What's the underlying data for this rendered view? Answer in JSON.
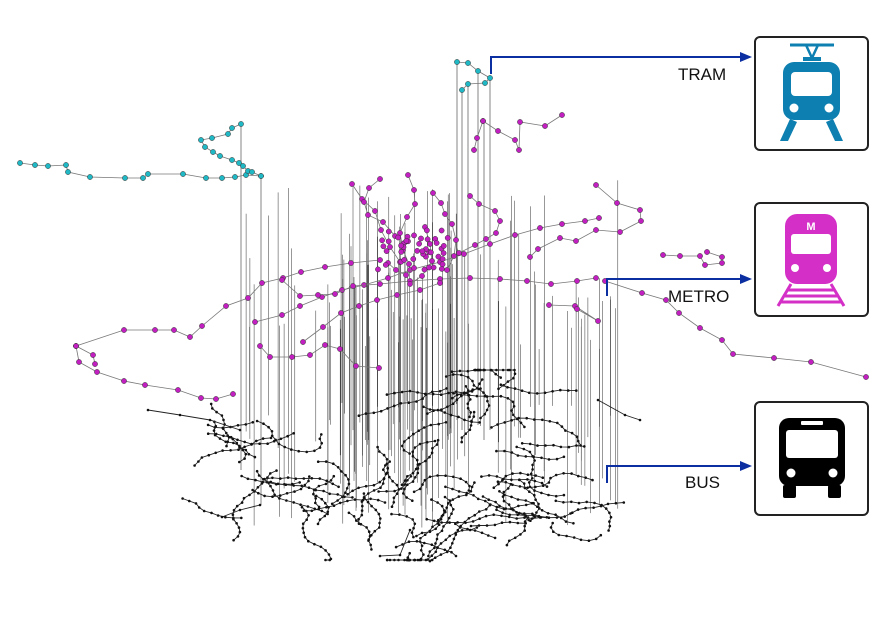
{
  "layers": [
    {
      "name": "tram",
      "label": "TRAM",
      "icon": "tram-icon",
      "color": "#0d7fb0",
      "node_color": "#1fb8c4"
    },
    {
      "name": "metro",
      "label": "METRO",
      "icon": "metro-icon",
      "color": "#d42fc6",
      "node_color": "#c21fc0",
      "icon_badge": "M"
    },
    {
      "name": "bus",
      "label": "BUS",
      "icon": "bus-icon",
      "color": "#000000",
      "node_color": "#111111"
    }
  ],
  "arrow_color": "#0b2ea0",
  "edge_color": "#777777"
}
